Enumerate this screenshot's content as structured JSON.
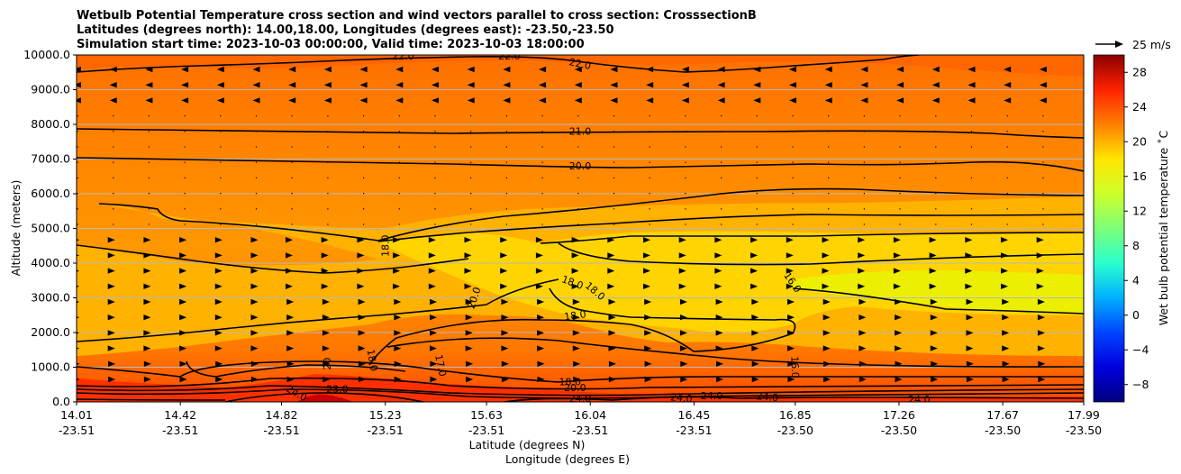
{
  "chart_data": {
    "type": "contourf",
    "title_lines": [
      "Wetbulb Potential Temperature cross section and wind vectors parallel to cross section: CrosssectionB",
      "Latitudes (degrees north): 14.00,18.00, Longitudes (degrees east): -23.50,-23.50",
      "Simulation start time: 2023-10-03 00:00:00, Valid time: 2023-10-03 18:00:00"
    ],
    "ylabel": "Altitude (meters)",
    "xlabel_1": "Latitude (degrees N)",
    "xlabel_2": "Longitude (degrees E)",
    "ylim": [
      0,
      10000
    ],
    "y_ticks": [
      "0.0",
      "1000.0",
      "2000.0",
      "3000.0",
      "4000.0",
      "5000.0",
      "6000.0",
      "7000.0",
      "8000.0",
      "9000.0",
      "10000.0"
    ],
    "y_tick_values": [
      0,
      1000,
      2000,
      3000,
      4000,
      5000,
      6000,
      7000,
      8000,
      9000,
      10000
    ],
    "x_ticks_lat": [
      "14.01",
      "14.42",
      "14.82",
      "15.23",
      "15.63",
      "16.04",
      "16.45",
      "16.85",
      "17.26",
      "17.67",
      "17.99"
    ],
    "x_ticks_lon": [
      "-23.51",
      "-23.51",
      "-23.51",
      "-23.51",
      "-23.51",
      "-23.51",
      "-23.51",
      "-23.50",
      "-23.50",
      "-23.50",
      "-23.50"
    ],
    "x_tick_values": [
      14.01,
      14.42,
      14.82,
      15.23,
      15.63,
      16.04,
      16.45,
      16.85,
      17.26,
      17.67,
      17.99
    ],
    "xlim": [
      14.01,
      17.99
    ],
    "grid": "horizontal",
    "colorbar": {
      "label": "Wet bulb potential temperature ˚C",
      "range": [
        -10,
        30
      ],
      "tick_values": [
        -8,
        -4,
        0,
        4,
        8,
        12,
        16,
        20,
        24,
        28
      ],
      "ticks": [
        "−8",
        "−4",
        "0",
        "4",
        "8",
        "12",
        "16",
        "20",
        "24",
        "28"
      ],
      "colors": [
        "#00007f",
        "#0000e0",
        "#0044ff",
        "#00b0ff",
        "#29ffce",
        "#7dff7a",
        "#cdff29",
        "#ffe500",
        "#ff8000",
        "#ff2200",
        "#8b0000"
      ]
    },
    "quiver_key": {
      "label": "25 m/s",
      "speed": 25
    },
    "contour_labels": [
      {
        "text": "22.0",
        "lat": 15.3,
        "alt": 9980,
        "rot": 0
      },
      {
        "text": "22.0",
        "lat": 15.72,
        "alt": 9980,
        "rot": 0
      },
      {
        "text": "22.0",
        "lat": 16.0,
        "alt": 9750,
        "rot": 12
      },
      {
        "text": "21.0",
        "lat": 16.0,
        "alt": 7800,
        "rot": 0
      },
      {
        "text": "20.0",
        "lat": 16.0,
        "alt": 6800,
        "rot": 0
      },
      {
        "text": "18.0",
        "lat": 15.23,
        "alt": 4500,
        "rot": -90
      },
      {
        "text": "20.0",
        "lat": 15.58,
        "alt": 3000,
        "rot": -72
      },
      {
        "text": "18.0",
        "lat": 15.97,
        "alt": 3450,
        "rot": 20
      },
      {
        "text": "18.0",
        "lat": 16.06,
        "alt": 3200,
        "rot": 40
      },
      {
        "text": "18.0",
        "lat": 15.98,
        "alt": 2500,
        "rot": -8
      },
      {
        "text": "16.0",
        "lat": 16.84,
        "alt": 3450,
        "rot": 55
      },
      {
        "text": "18.0",
        "lat": 15.18,
        "alt": 1200,
        "rot": 80
      },
      {
        "text": "17.0",
        "lat": 15.45,
        "alt": 1050,
        "rot": 78
      },
      {
        "text": "20",
        "lat": 15.0,
        "alt": 1100,
        "rot": -90
      },
      {
        "text": "16.0",
        "lat": 16.85,
        "alt": 1000,
        "rot": 88
      },
      {
        "text": "18.0",
        "lat": 15.96,
        "alt": 580,
        "rot": 0
      },
      {
        "text": "20.0",
        "lat": 15.98,
        "alt": 420,
        "rot": 0
      },
      {
        "text": "23.0",
        "lat": 15.04,
        "alt": 380,
        "rot": 0
      },
      {
        "text": "24.0",
        "lat": 14.88,
        "alt": 260,
        "rot": 30
      },
      {
        "text": "24.0",
        "lat": 16.0,
        "alt": 100,
        "rot": 0
      },
      {
        "text": "24.0",
        "lat": 16.4,
        "alt": 120,
        "rot": 5
      },
      {
        "text": "24.0",
        "lat": 16.52,
        "alt": 180,
        "rot": 0
      },
      {
        "text": "24.0",
        "lat": 16.74,
        "alt": 150,
        "rot": 5
      },
      {
        "text": "24.0",
        "lat": 17.34,
        "alt": 80,
        "rot": 0
      }
    ]
  }
}
